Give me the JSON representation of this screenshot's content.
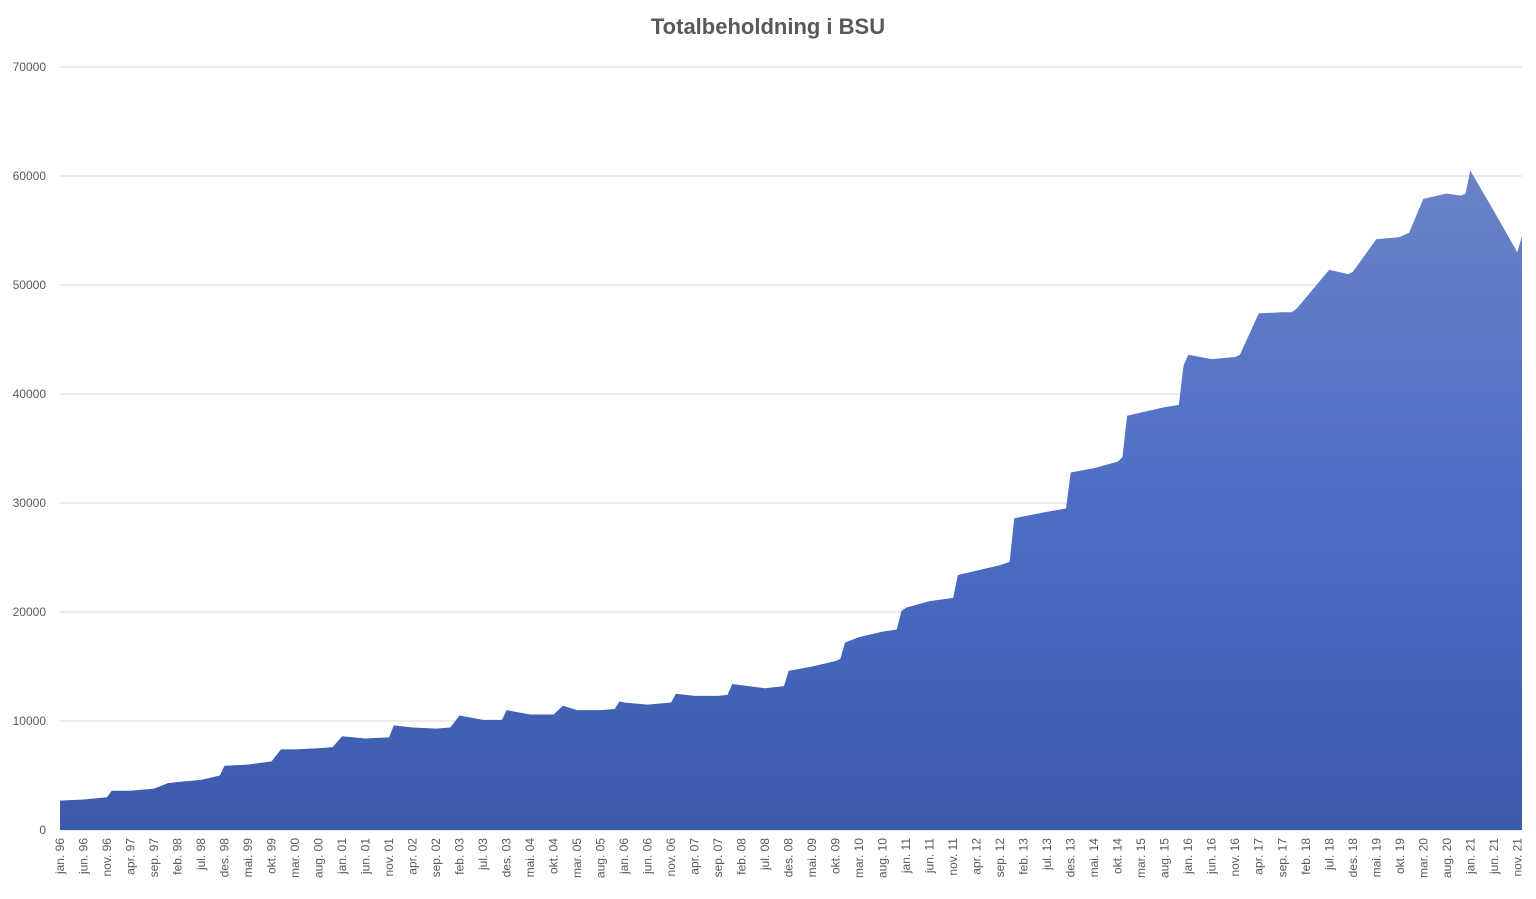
{
  "chart_data": {
    "type": "area",
    "title": "Totalbeholdning i BSU",
    "xlabel": "",
    "ylabel": "",
    "ylim": [
      0,
      70000
    ],
    "y_ticks": [
      0,
      10000,
      20000,
      30000,
      40000,
      50000,
      60000,
      70000
    ],
    "grid": true,
    "legend": "none",
    "colors": {
      "area_top": "#6a83c8",
      "area_mid": "#4a6cc4",
      "area_bottom": "#3c5aaa",
      "grid": "#d9d9d9",
      "text": "#595959"
    },
    "x_tick_labels": [
      "jan. 96",
      "jun. 96",
      "nov. 96",
      "apr. 97",
      "sep. 97",
      "feb. 98",
      "jul. 98",
      "des. 98",
      "mai. 99",
      "okt. 99",
      "mar. 00",
      "aug. 00",
      "jan. 01",
      "jun. 01",
      "nov. 01",
      "apr. 02",
      "sep. 02",
      "feb. 03",
      "jul. 03",
      "des. 03",
      "mai. 04",
      "okt. 04",
      "mar. 05",
      "aug. 05",
      "jan. 06",
      "jun. 06",
      "nov. 06",
      "apr. 07",
      "sep. 07",
      "feb. 08",
      "jul. 08",
      "des. 08",
      "mai. 09",
      "okt. 09",
      "mar. 10",
      "aug. 10",
      "jan. 11",
      "jun. 11",
      "nov. 11",
      "apr. 12",
      "sep. 12",
      "feb. 13",
      "jul. 13",
      "des. 13",
      "mai. 14",
      "okt. 14",
      "mar. 15",
      "aug. 15",
      "jan. 16",
      "jun. 16",
      "nov. 16",
      "apr. 17",
      "sep. 17",
      "feb. 18",
      "jul. 18",
      "des. 18",
      "mai. 19",
      "okt. 19",
      "mar. 20",
      "aug. 20",
      "jan. 21",
      "jun. 21",
      "nov. 21"
    ],
    "x": [
      "jan. 96",
      "jun. 96",
      "nov. 96",
      "des. 96",
      "apr. 97",
      "sep. 97",
      "des. 97",
      "feb. 98",
      "jul. 98",
      "nov. 98",
      "des. 98",
      "mai. 99",
      "okt. 99",
      "des. 99",
      "mar. 00",
      "aug. 00",
      "nov. 00",
      "jan. 01",
      "jun. 01",
      "nov. 01",
      "des. 01",
      "apr. 02",
      "sep. 02",
      "des. 02",
      "feb. 03",
      "jul. 03",
      "nov. 03",
      "des. 03",
      "mai. 04",
      "okt. 04",
      "des. 04",
      "mar. 05",
      "aug. 05",
      "nov. 05",
      "des. 05",
      "jan. 06",
      "jun. 06",
      "nov. 06",
      "des. 06",
      "apr. 07",
      "sep. 07",
      "nov. 07",
      "des. 07",
      "jul. 08",
      "nov. 08",
      "des. 08",
      "mai. 09",
      "okt. 09",
      "nov. 09",
      "des. 09",
      "mar. 10",
      "aug. 10",
      "nov. 10",
      "des. 10",
      "jan. 11",
      "jun. 11",
      "nov. 11",
      "des. 11",
      "apr. 12",
      "sep. 12",
      "nov. 12",
      "des. 12",
      "jul. 13",
      "nov. 13",
      "des. 13",
      "mai. 14",
      "okt. 14",
      "nov. 14",
      "des. 14",
      "mar. 15",
      "aug. 15",
      "nov. 15",
      "des. 15",
      "jan. 16",
      "jun. 16",
      "nov. 16",
      "des. 16",
      "apr. 17",
      "sep. 17",
      "nov. 17",
      "des. 17",
      "jul. 18",
      "nov. 18",
      "des. 18",
      "mai. 19",
      "okt. 19",
      "nov. 19",
      "des. 19",
      "mar. 20",
      "aug. 20",
      "nov. 20",
      "des. 20",
      "jan. 21",
      "jun. 21",
      "nov. 21",
      "des. 21"
    ],
    "values": [
      2700,
      2800,
      3000,
      3600,
      3600,
      3800,
      4300,
      4400,
      4600,
      5000,
      5900,
      6000,
      6300,
      7400,
      7400,
      7500,
      7600,
      8600,
      8400,
      8500,
      9600,
      9400,
      9300,
      9400,
      10500,
      10100,
      10100,
      11000,
      10600,
      10600,
      11400,
      11000,
      11000,
      11100,
      11800,
      11700,
      11500,
      11700,
      12500,
      12300,
      12300,
      12400,
      13400,
      13000,
      13200,
      14600,
      15000,
      15500,
      15700,
      17200,
      17700,
      18200,
      18400,
      20100,
      20400,
      21000,
      21300,
      23400,
      23800,
      24300,
      24600,
      28600,
      29200,
      29500,
      32800,
      33200,
      33800,
      34200,
      38000,
      38300,
      38800,
      39000,
      42600,
      43600,
      43200,
      43400,
      43600,
      47400,
      47500,
      47500,
      47800,
      51400,
      51000,
      51200,
      54200,
      54400,
      54600,
      54800,
      57900,
      58400,
      58200,
      58400,
      60500,
      56800,
      53000,
      54500
    ]
  }
}
